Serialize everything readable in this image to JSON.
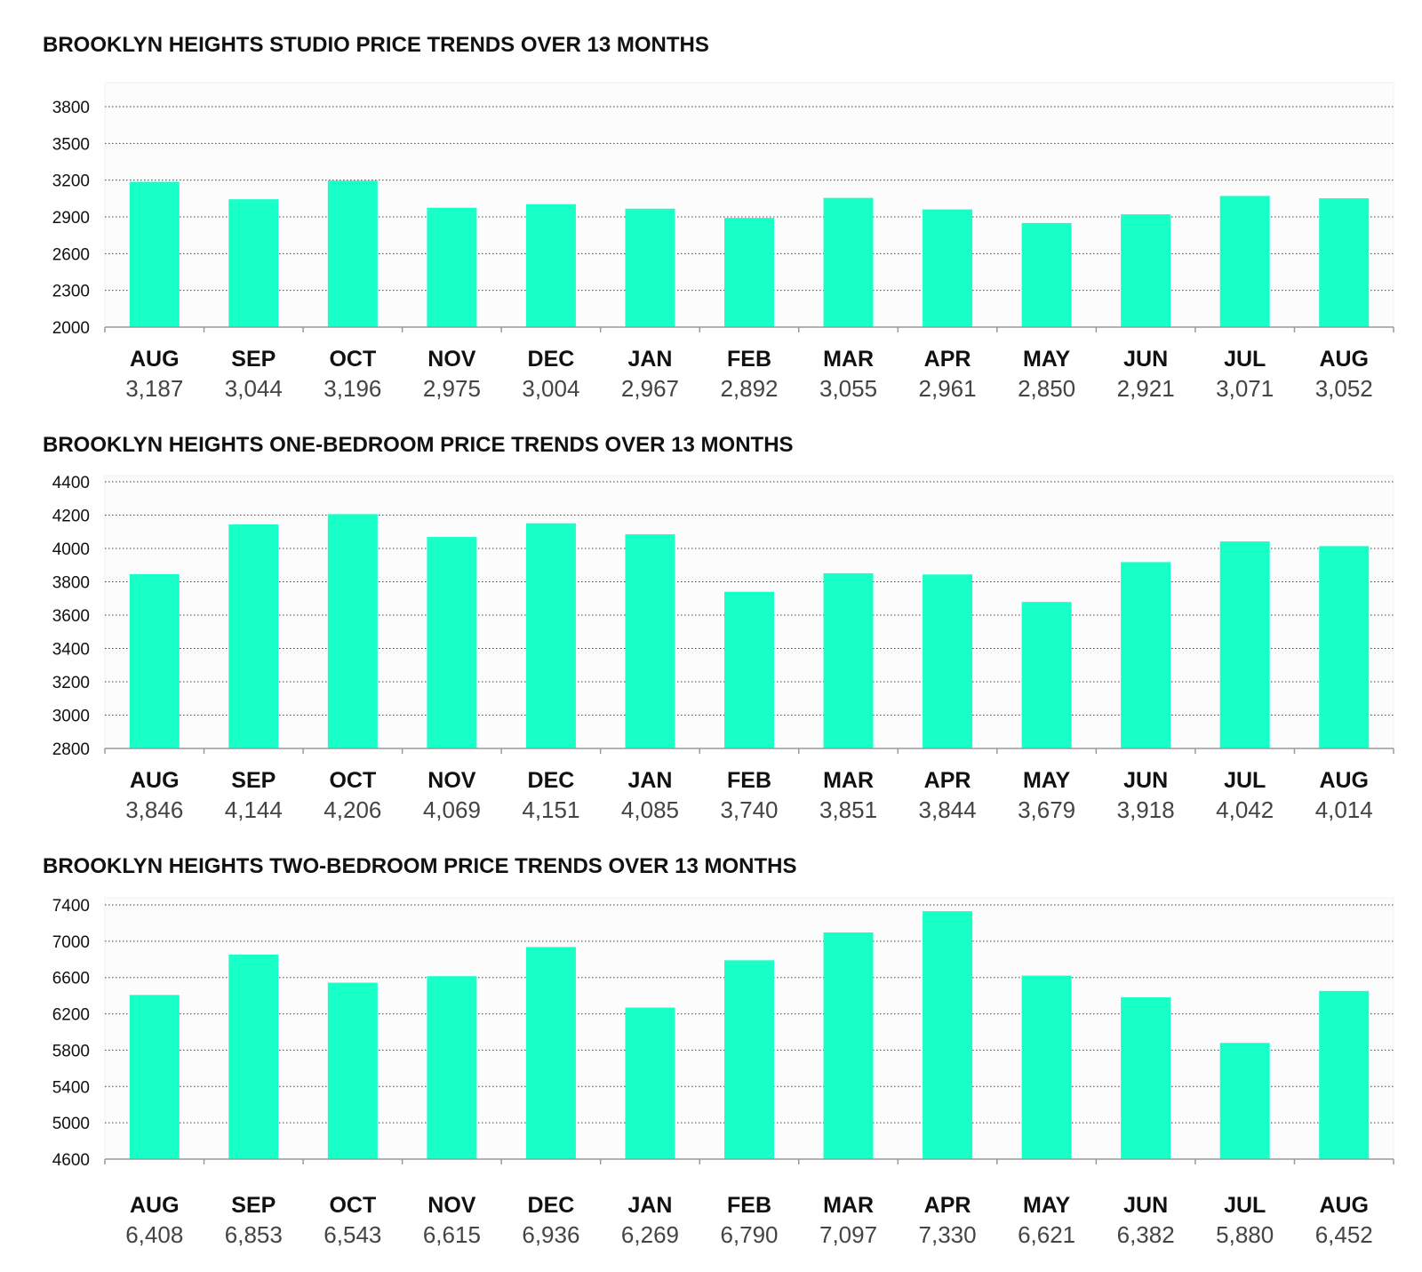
{
  "colors": {
    "bar": "#19ffc8",
    "text": "#111111",
    "value_text": "#444444"
  },
  "chart_data": [
    {
      "type": "bar",
      "title": "BROOKLYN HEIGHTS STUDIO PRICE TRENDS OVER 13 MONTHS",
      "categories": [
        "AUG",
        "SEP",
        "OCT",
        "NOV",
        "DEC",
        "JAN",
        "FEB",
        "MAR",
        "APR",
        "MAY",
        "JUN",
        "JUL",
        "AUG"
      ],
      "values": [
        3187,
        3044,
        3196,
        2975,
        3004,
        2967,
        2892,
        3055,
        2961,
        2850,
        2921,
        3071,
        3052
      ],
      "value_labels": [
        "3,187",
        "3,044",
        "3,196",
        "2,975",
        "3,004",
        "2,967",
        "2,892",
        "3,055",
        "2,961",
        "2,850",
        "2,921",
        "3,071",
        "3,052"
      ],
      "ylim": [
        2000,
        4000
      ],
      "yticks": [
        2000,
        2300,
        2600,
        2900,
        3200,
        3500,
        3800
      ],
      "xlabel": "",
      "ylabel": "",
      "grid": true
    },
    {
      "type": "bar",
      "title": "BROOKLYN HEIGHTS ONE-BEDROOM PRICE TRENDS OVER 13 MONTHS",
      "categories": [
        "AUG",
        "SEP",
        "OCT",
        "NOV",
        "DEC",
        "JAN",
        "FEB",
        "MAR",
        "APR",
        "MAY",
        "JUN",
        "JUL",
        "AUG"
      ],
      "values": [
        3846,
        4144,
        4206,
        4069,
        4151,
        4085,
        3740,
        3851,
        3844,
        3679,
        3918,
        4042,
        4014
      ],
      "value_labels": [
        "3,846",
        "4,144",
        "4,206",
        "4,069",
        "4,151",
        "4,085",
        "3,740",
        "3,851",
        "3,844",
        "3,679",
        "3,918",
        "4,042",
        "4,014"
      ],
      "ylim": [
        2800,
        4400
      ],
      "yticks": [
        2800,
        3000,
        3200,
        3400,
        3600,
        3800,
        4000,
        4200,
        4400
      ],
      "xlabel": "",
      "ylabel": "",
      "grid": true
    },
    {
      "type": "bar",
      "title": "BROOKLYN HEIGHTS TWO-BEDROOM PRICE TRENDS OVER 13 MONTHS",
      "categories": [
        "AUG",
        "SEP",
        "OCT",
        "NOV",
        "DEC",
        "JAN",
        "FEB",
        "MAR",
        "APR",
        "MAY",
        "JUN",
        "JUL",
        "AUG"
      ],
      "values": [
        6408,
        6853,
        6543,
        6615,
        6936,
        6269,
        6790,
        7097,
        7330,
        6621,
        6382,
        5880,
        6452
      ],
      "value_labels": [
        "6,408",
        "6,853",
        "6,543",
        "6,615",
        "6,936",
        "6,269",
        "6,790",
        "7,097",
        "7,330",
        "6,621",
        "6,382",
        "5,880",
        "6,452"
      ],
      "ylim": [
        4600,
        7400
      ],
      "yticks": [
        4600,
        5000,
        5400,
        5800,
        6200,
        6600,
        7000,
        7400
      ],
      "xlabel": "",
      "ylabel": "",
      "grid": true
    }
  ]
}
